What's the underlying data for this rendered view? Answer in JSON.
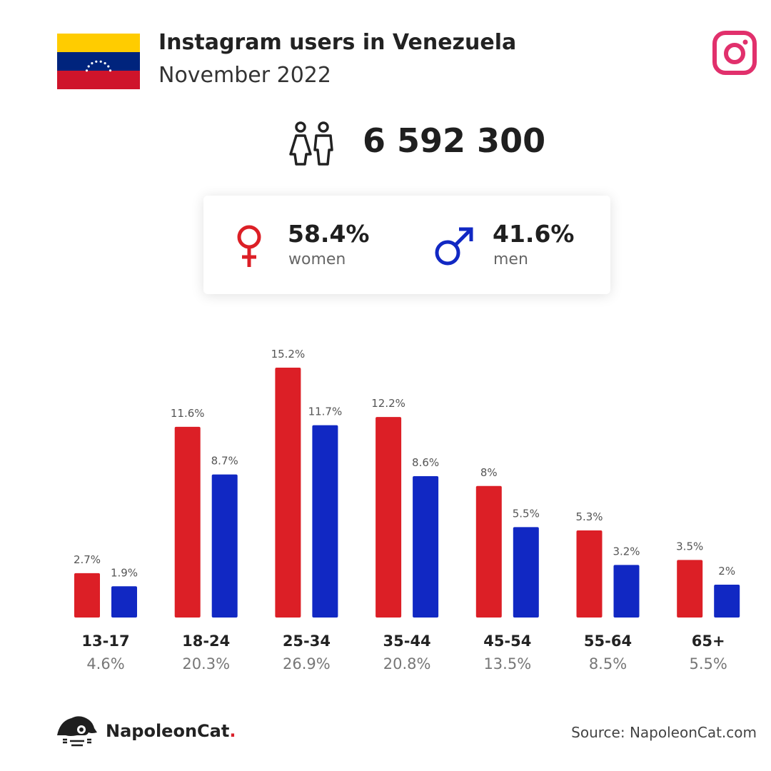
{
  "header": {
    "title": "Instagram users in Venezuela",
    "subtitle": "November 2022"
  },
  "total_users": "6 592 300",
  "gender": {
    "women_pct": "58.4%",
    "women_label": "women",
    "men_pct": "41.6%",
    "men_label": "men"
  },
  "colors": {
    "women": "#dc1f26",
    "men": "#1128c3",
    "instagram": "#e1306c"
  },
  "icons": [
    "venezuela-flag-icon",
    "instagram-icon",
    "users-icon",
    "female-icon",
    "male-icon",
    "napoleoncat-logo-icon"
  ],
  "chart_data": {
    "type": "bar",
    "categories": [
      "13-17",
      "18-24",
      "25-34",
      "35-44",
      "45-54",
      "55-64",
      "65+"
    ],
    "category_totals": [
      "4.6%",
      "20.3%",
      "26.9%",
      "20.8%",
      "13.5%",
      "8.5%",
      "5.5%"
    ],
    "series": [
      {
        "name": "women",
        "values": [
          2.7,
          11.6,
          15.2,
          12.2,
          8,
          5.3,
          3.5
        ],
        "labels": [
          "2.7%",
          "11.6%",
          "15.2%",
          "12.2%",
          "8%",
          "5.3%",
          "3.5%"
        ]
      },
      {
        "name": "men",
        "values": [
          1.9,
          8.7,
          11.7,
          8.6,
          5.5,
          3.2,
          2
        ],
        "labels": [
          "1.9%",
          "8.7%",
          "11.7%",
          "8.6%",
          "5.5%",
          "3.2%",
          "2%"
        ]
      }
    ],
    "ylim": [
      0,
      15.2
    ],
    "grid": false
  },
  "footer": {
    "brand": "NapoleonCat",
    "brand_dot": ".",
    "source": "Source: NapoleonCat.com"
  }
}
